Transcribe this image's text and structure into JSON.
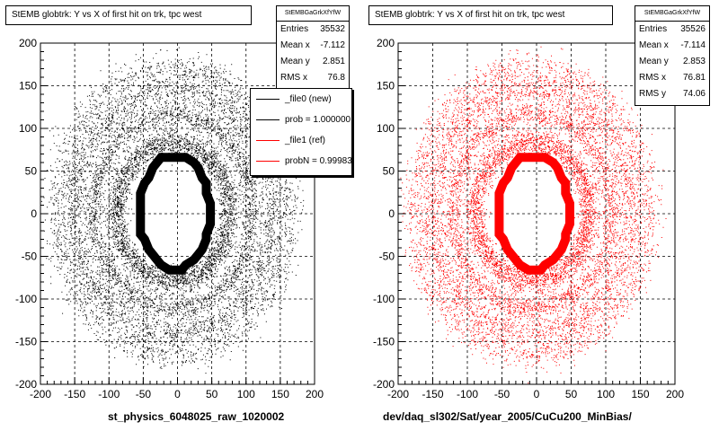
{
  "chart_data": [
    {
      "type": "scatter",
      "title": "StEMB globtrk: Y vs X of first hit on trk, tpc west",
      "xlabel": "st_physics_6048025_raw_1020002",
      "ylabel": "",
      "xlim": [
        -200,
        200
      ],
      "ylim": [
        -200,
        200
      ],
      "xticks": [
        -200,
        -150,
        -100,
        -50,
        0,
        50,
        100,
        150,
        200
      ],
      "yticks": [
        -200,
        -150,
        -100,
        -50,
        0,
        50,
        100,
        150,
        200
      ],
      "grid": true,
      "color": "#000000",
      "stats": {
        "name": "StEMBGaGrkXfYfW",
        "rows": [
          {
            "label": "Entries",
            "value": "35532"
          },
          {
            "label": "Mean x",
            "value": "-7.112"
          },
          {
            "label": "Mean y",
            "value": "2.851"
          },
          {
            "label": "RMS x",
            "value": "76.8"
          }
        ]
      },
      "legend": {
        "position": "top-right",
        "entries": [
          {
            "label": "_file0 (new)",
            "color": "#000000"
          },
          {
            "label": "prob = 1.000000",
            "color": "#000000"
          },
          {
            "label": "_file1 (ref)",
            "color": "#ff0000"
          },
          {
            "label": "probN = 0.99983",
            "color": "#ff0000"
          }
        ]
      }
    },
    {
      "type": "scatter",
      "title": "StEMB globtrk: Y vs X of first hit on trk, tpc west",
      "xlabel": "dev/daq_sl302/Sat/year_2005/CuCu200_MinBias/",
      "ylabel": "",
      "xlim": [
        -200,
        200
      ],
      "ylim": [
        -200,
        200
      ],
      "xticks": [
        -200,
        -150,
        -100,
        -50,
        0,
        50,
        100,
        150,
        200
      ],
      "yticks": [
        -200,
        -150,
        -100,
        -50,
        0,
        50,
        100,
        150,
        200
      ],
      "grid": true,
      "color": "#ff0000",
      "stats": {
        "name": "StEMBGaGrkXfYfW",
        "rows": [
          {
            "label": "Entries",
            "value": "35526"
          },
          {
            "label": "Mean x",
            "value": "-7.114"
          },
          {
            "label": "Mean y",
            "value": "2.853"
          },
          {
            "label": "RMS x",
            "value": "76.81"
          },
          {
            "label": "RMS y",
            "value": "74.06"
          }
        ]
      }
    }
  ]
}
